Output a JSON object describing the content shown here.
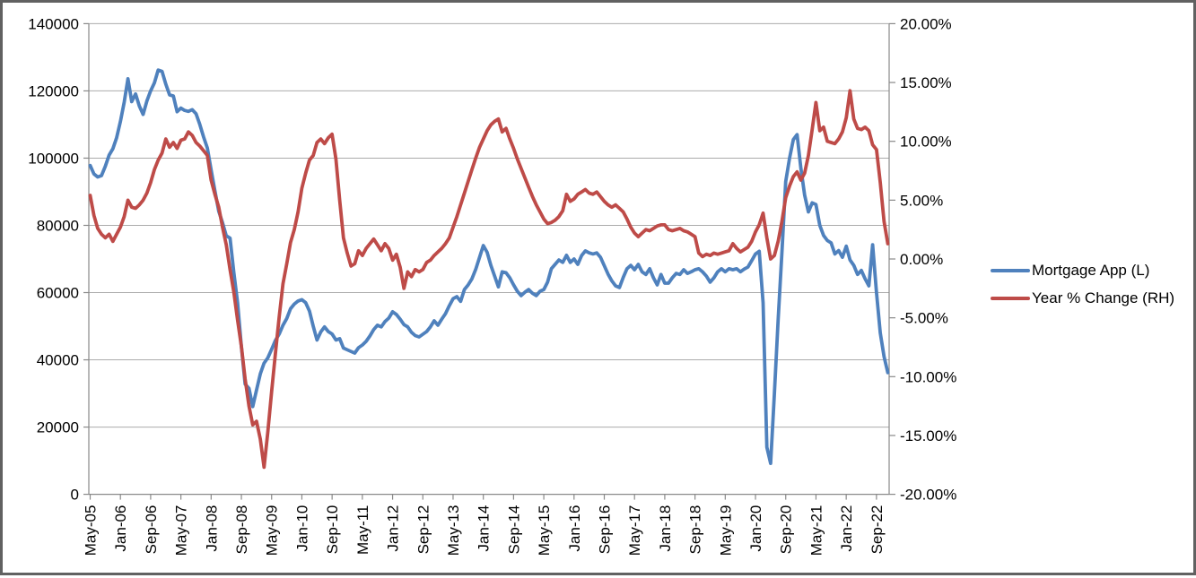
{
  "chart_data": {
    "type": "line",
    "title": "",
    "grid": "horizontal",
    "legend_position": "right",
    "x_axis": {
      "start": "May-05",
      "end": "Dec-22",
      "interval": "monthly",
      "count": 212,
      "tick_label_every_n_months": 8,
      "tick_labels": [
        "May-05",
        "Jan-06",
        "Sep-06",
        "May-07",
        "Jan-08",
        "Sep-08",
        "May-09",
        "Jan-10",
        "Sep-10",
        "May-11",
        "Jan-12",
        "Sep-12",
        "May-13",
        "Jan-14",
        "Sep-14",
        "May-15",
        "Jan-16",
        "Sep-16",
        "May-17",
        "Jan-18",
        "Sep-18",
        "May-19",
        "Jan-20",
        "Sep-20",
        "May-21",
        "Jan-22",
        "Sep-22"
      ]
    },
    "left_axis": {
      "min": 0,
      "max": 140000,
      "step": 20000,
      "tick_labels": [
        "140000",
        "120000",
        "100000",
        "80000",
        "60000",
        "40000",
        "20000",
        "0"
      ]
    },
    "right_axis": {
      "min": -20,
      "max": 20,
      "step": 5,
      "unit": "%",
      "tick_labels": [
        "20.00%",
        "15.00%",
        "10.00%",
        "5.00%",
        "0.00%",
        "-5.00%",
        "-10.00%",
        "-15.00%",
        "-20.00%"
      ]
    },
    "series": [
      {
        "name": "Mortgage App (L)",
        "axis": "left",
        "color": "#4F81BD",
        "values": [
          97800,
          95300,
          94400,
          94800,
          97600,
          100900,
          102800,
          106100,
          110900,
          116600,
          123600,
          116800,
          119100,
          115500,
          113000,
          117000,
          120000,
          122400,
          126200,
          125800,
          122000,
          118800,
          118500,
          113800,
          114900,
          114200,
          113900,
          114400,
          113200,
          110000,
          106300,
          103000,
          96500,
          90300,
          84200,
          80800,
          76900,
          76200,
          66000,
          57000,
          44000,
          32800,
          31500,
          26100,
          31000,
          35800,
          39000,
          40600,
          43100,
          45800,
          47700,
          50300,
          52300,
          55200,
          56600,
          57500,
          57900,
          57000,
          54500,
          50000,
          45900,
          48300,
          49800,
          48400,
          47700,
          45900,
          46300,
          43500,
          43000,
          42500,
          42000,
          43600,
          44400,
          45500,
          47100,
          49000,
          50300,
          49800,
          51400,
          52400,
          54300,
          53500,
          52100,
          50500,
          49800,
          48200,
          47200,
          46800,
          47600,
          48400,
          49800,
          51600,
          50300,
          52100,
          53700,
          56100,
          58200,
          58800,
          57400,
          60900,
          62300,
          64100,
          67000,
          70500,
          74000,
          72000,
          68100,
          64900,
          61700,
          66200,
          65900,
          64400,
          62300,
          60400,
          59100,
          60100,
          60900,
          59800,
          59100,
          60400,
          60900,
          63100,
          67100,
          68400,
          69700,
          69000,
          71100,
          69000,
          70000,
          68400,
          71000,
          72400,
          71800,
          71500,
          71800,
          70500,
          68000,
          65500,
          63500,
          62000,
          61500,
          64500,
          67100,
          68100,
          66800,
          68400,
          66200,
          65400,
          67100,
          64400,
          62300,
          65400,
          62800,
          62800,
          64400,
          65700,
          65400,
          66800,
          65700,
          66200,
          66800,
          67100,
          66200,
          64900,
          63100,
          64400,
          66200,
          67100,
          66200,
          67100,
          66800,
          67100,
          66200,
          67000,
          67600,
          69500,
          71500,
          72300,
          57000,
          14000,
          9200,
          30000,
          52000,
          72000,
          93000,
          100000,
          105500,
          107000,
          97000,
          89000,
          84000,
          86700,
          86200,
          80000,
          77000,
          75500,
          74800,
          71500,
          72500,
          70500,
          73800,
          69700,
          68100,
          65400,
          66600,
          64100,
          62000,
          74200,
          60000,
          48000,
          41000,
          36200
        ]
      },
      {
        "name": "Year % Change (RH)",
        "axis": "right",
        "color": "#BE4B48",
        "values": [
          5.4,
          3.7,
          2.6,
          2.1,
          1.8,
          2.1,
          1.5,
          2.1,
          2.7,
          3.6,
          5.0,
          4.4,
          4.3,
          4.6,
          5.0,
          5.6,
          6.5,
          7.6,
          8.4,
          9.0,
          10.2,
          9.5,
          9.9,
          9.4,
          10.1,
          10.2,
          10.8,
          10.5,
          9.9,
          9.6,
          9.2,
          8.8,
          6.7,
          5.5,
          4.4,
          2.7,
          1.2,
          -0.9,
          -2.8,
          -5.2,
          -7.4,
          -10.2,
          -12.5,
          -14.1,
          -13.8,
          -15.3,
          -17.7,
          -14.7,
          -11.3,
          -8.0,
          -4.9,
          -2.1,
          -0.4,
          1.4,
          2.5,
          4.0,
          6.0,
          7.3,
          8.4,
          8.8,
          9.9,
          10.2,
          9.8,
          10.3,
          10.6,
          8.5,
          5.0,
          1.8,
          0.5,
          -0.6,
          -0.4,
          0.7,
          0.3,
          0.9,
          1.3,
          1.7,
          1.2,
          0.7,
          1.3,
          0.9,
          -0.1,
          0.4,
          -0.7,
          -2.5,
          -1.1,
          -1.5,
          -0.9,
          -1.1,
          -0.9,
          -0.3,
          -0.1,
          0.3,
          0.6,
          0.9,
          1.3,
          1.8,
          2.7,
          3.6,
          4.6,
          5.6,
          6.6,
          7.6,
          8.6,
          9.5,
          10.2,
          10.9,
          11.4,
          11.7,
          11.9,
          10.8,
          11.1,
          10.2,
          9.4,
          8.5,
          7.7,
          6.9,
          6.1,
          5.3,
          4.6,
          4.0,
          3.4,
          3.0,
          3.1,
          3.3,
          3.6,
          4.1,
          5.5,
          4.9,
          5.1,
          5.5,
          5.7,
          5.9,
          5.6,
          5.5,
          5.7,
          5.3,
          4.9,
          4.6,
          4.4,
          4.6,
          4.3,
          4.0,
          3.4,
          2.7,
          2.2,
          1.9,
          2.2,
          2.5,
          2.4,
          2.6,
          2.8,
          2.9,
          2.9,
          2.5,
          2.4,
          2.5,
          2.6,
          2.4,
          2.3,
          2.1,
          1.9,
          0.5,
          0.2,
          0.4,
          0.3,
          0.5,
          0.4,
          0.5,
          0.6,
          0.7,
          1.3,
          0.9,
          0.6,
          0.8,
          1.0,
          1.5,
          2.3,
          2.9,
          3.9,
          1.8,
          0.0,
          0.3,
          1.5,
          3.2,
          5.2,
          6.2,
          7.0,
          7.4,
          6.7,
          7.3,
          8.8,
          11.0,
          13.3,
          10.9,
          11.2,
          10.0,
          9.9,
          9.8,
          10.2,
          10.8,
          12.0,
          14.3,
          11.9,
          11.1,
          11.0,
          11.2,
          10.9,
          9.7,
          9.3,
          6.5,
          3.2,
          1.3
        ]
      }
    ],
    "styles": {
      "gridline_color": "#ABABAB",
      "axis_color": "#898989",
      "label_color": "#000000",
      "series_stroke_width": 3.8
    }
  }
}
